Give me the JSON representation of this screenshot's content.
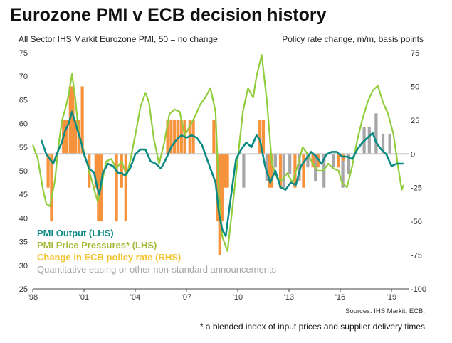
{
  "title": "Eurozone PMI v ECB decision history",
  "left_axis_label": "All Sector IHS Markit Eurozone PMI, 50 = no change",
  "right_axis_label": "Policy rate change, m/m, basis points",
  "source": "Sources: IHS Markit, ECB.",
  "footnote": "* a blended index of input prices and supplier delivery times",
  "colors": {
    "pmi_output": "#0b8a84",
    "pmi_prices": "#8fcd3b",
    "ecb_rate": "#f7923d",
    "qe": "#a6a6a6",
    "legend_rate_text": "#f4c430",
    "legend_prices_text": "#a6b93b",
    "zero_line": "#c8c8c8"
  },
  "chart_data": {
    "type": "line",
    "title": "Eurozone PMI v ECB decision history",
    "ylabel_left": "All Sector IHS Markit Eurozone PMI, 50 = no change",
    "ylabel_right": "Policy rate change, m/m, basis points",
    "ylim_left": [
      25,
      75
    ],
    "ylim_right": [
      -100,
      75
    ],
    "yticks_left": [
      25,
      30,
      35,
      40,
      45,
      50,
      55,
      60,
      65,
      70,
      75
    ],
    "yticks_right": [
      -100,
      -75,
      -50,
      -25,
      0,
      25,
      50,
      75
    ],
    "xlim": [
      1998.0,
      2020.0
    ],
    "xticks": [
      {
        "x": 1998,
        "label": "'98"
      },
      {
        "x": 2001,
        "label": "'01"
      },
      {
        "x": 2004,
        "label": "'04"
      },
      {
        "x": 2007,
        "label": "'07"
      },
      {
        "x": 2010,
        "label": "'10"
      },
      {
        "x": 2013,
        "label": "'13"
      },
      {
        "x": 2016,
        "label": "'16"
      },
      {
        "x": 2019,
        "label": "'19"
      }
    ],
    "legend": [
      {
        "label": "PMI  Output (LHS)",
        "key": "pmi_output"
      },
      {
        "label": "PMI Price Pressures* (LHS)",
        "key": "pmi_prices"
      },
      {
        "label": "Change in ECB policy rate (RHS)",
        "key": "ecb_rate"
      },
      {
        "label": "Quantitative easing or other non-standard announcements",
        "key": "qe"
      }
    ],
    "series": [
      {
        "name": "PMI  Output (LHS)",
        "axis": "left",
        "x": [
          1998.5,
          1998.8,
          1999.0,
          1999.2,
          1999.4,
          1999.7,
          1999.9,
          2000.1,
          2000.3,
          2000.5,
          2000.8,
          2001.0,
          2001.3,
          2001.6,
          2001.8,
          2001.9,
          2002.1,
          2002.4,
          2002.7,
          2003.0,
          2003.2,
          2003.4,
          2003.7,
          2004.0,
          2004.3,
          2004.6,
          2004.9,
          2005.2,
          2005.5,
          2005.8,
          2006.1,
          2006.4,
          2006.7,
          2007.0,
          2007.3,
          2007.6,
          2007.9,
          2008.2,
          2008.5,
          2008.7,
          2008.9,
          2009.1,
          2009.3,
          2009.6,
          2009.9,
          2010.2,
          2010.5,
          2010.8,
          2011.1,
          2011.3,
          2011.6,
          2011.9,
          2012.2,
          2012.5,
          2012.8,
          2013.1,
          2013.4,
          2013.7,
          2014.0,
          2014.3,
          2014.6,
          2014.9,
          2015.2,
          2015.5,
          2015.8,
          2016.1,
          2016.4,
          2016.7,
          2017.0,
          2017.3,
          2017.6,
          2017.9,
          2018.1,
          2018.4,
          2018.7,
          2019.0,
          2019.3,
          2019.6,
          2019.7
        ],
        "values": [
          56.5,
          53.5,
          52.5,
          51.5,
          53.5,
          56.0,
          58.5,
          60.0,
          62.5,
          60.0,
          56.5,
          53.5,
          50.5,
          49.5,
          46.0,
          45.0,
          49.5,
          51.5,
          51.0,
          49.5,
          49.5,
          49.0,
          50.5,
          53.5,
          54.5,
          54.5,
          52.0,
          51.5,
          50.5,
          52.5,
          55.0,
          56.5,
          57.5,
          57.0,
          57.5,
          57.0,
          55.5,
          52.5,
          49.5,
          47.5,
          41.0,
          37.5,
          36.2,
          44.5,
          52.5,
          54.5,
          56.0,
          55.0,
          57.5,
          56.5,
          51.0,
          47.5,
          50.0,
          46.5,
          46.0,
          47.5,
          47.0,
          51.0,
          52.5,
          54.0,
          53.0,
          51.5,
          53.5,
          54.0,
          54.0,
          53.0,
          53.0,
          52.5,
          54.5,
          56.0,
          57.0,
          58.0,
          56.0,
          54.5,
          53.5,
          51.0,
          51.5,
          51.5,
          51.5
        ]
      },
      {
        "name": "PMI Price Pressures* (LHS)",
        "axis": "left",
        "x": [
          1998.0,
          1998.3,
          1998.6,
          1998.8,
          1999.0,
          1999.3,
          1999.5,
          1999.7,
          1999.9,
          2000.1,
          2000.3,
          2000.5,
          2000.7,
          2001.0,
          2001.3,
          2001.6,
          2001.8,
          2002.0,
          2002.3,
          2002.6,
          2002.9,
          2003.2,
          2003.5,
          2003.7,
          2004.0,
          2004.3,
          2004.6,
          2004.8,
          2005.1,
          2005.4,
          2005.7,
          2006.0,
          2006.3,
          2006.6,
          2006.9,
          2007.2,
          2007.5,
          2007.8,
          2008.1,
          2008.4,
          2008.7,
          2008.9,
          2009.1,
          2009.4,
          2009.7,
          2010.0,
          2010.3,
          2010.6,
          2010.9,
          2011.1,
          2011.4,
          2011.7,
          2012.0,
          2012.3,
          2012.6,
          2012.9,
          2013.2,
          2013.5,
          2013.8,
          2014.1,
          2014.4,
          2014.7,
          2015.0,
          2015.3,
          2015.6,
          2015.9,
          2016.1,
          2016.4,
          2016.7,
          2017.0,
          2017.3,
          2017.6,
          2017.9,
          2018.2,
          2018.5,
          2018.8,
          2019.1,
          2019.4,
          2019.6,
          2019.7
        ],
        "values": [
          55.5,
          52.5,
          46.0,
          43.0,
          42.5,
          48.0,
          55.0,
          60.5,
          63.0,
          66.0,
          70.5,
          65.0,
          57.5,
          54.0,
          50.0,
          46.0,
          43.5,
          46.5,
          52.0,
          52.5,
          50.5,
          52.0,
          49.0,
          52.0,
          57.5,
          63.5,
          66.5,
          64.5,
          56.5,
          51.5,
          56.0,
          62.0,
          63.0,
          62.5,
          57.5,
          59.5,
          61.5,
          64.0,
          65.5,
          67.5,
          62.5,
          45.0,
          36.0,
          33.0,
          42.5,
          52.5,
          62.5,
          67.5,
          65.5,
          70.0,
          74.5,
          65.0,
          51.5,
          48.5,
          48.0,
          49.5,
          47.5,
          51.0,
          55.0,
          53.5,
          51.5,
          50.0,
          50.0,
          51.5,
          50.5,
          50.0,
          47.5,
          46.5,
          51.0,
          56.5,
          61.0,
          64.5,
          67.0,
          68.0,
          64.5,
          62.0,
          58.0,
          50.5,
          46.0,
          47.0
        ]
      },
      {
        "name": "Change in ECB policy rate (RHS)",
        "axis": "right",
        "type": "bar",
        "bars": [
          {
            "x": 1998.9,
            "value": -25
          },
          {
            "x": 1999.1,
            "value": -50
          },
          {
            "x": 1999.8,
            "value": 25
          },
          {
            "x": 2000.0,
            "value": 25
          },
          {
            "x": 2000.2,
            "value": 50
          },
          {
            "x": 2000.35,
            "value": 50
          },
          {
            "x": 2000.5,
            "value": 25
          },
          {
            "x": 2000.7,
            "value": 25
          },
          {
            "x": 2000.9,
            "value": 50
          },
          {
            "x": 2001.3,
            "value": -25
          },
          {
            "x": 2001.7,
            "value": -25
          },
          {
            "x": 2001.85,
            "value": -50
          },
          {
            "x": 2002.0,
            "value": -50
          },
          {
            "x": 2002.9,
            "value": -50
          },
          {
            "x": 2003.2,
            "value": -25
          },
          {
            "x": 2003.45,
            "value": -50
          },
          {
            "x": 2005.9,
            "value": 25
          },
          {
            "x": 2006.1,
            "value": 25
          },
          {
            "x": 2006.3,
            "value": 25
          },
          {
            "x": 2006.5,
            "value": 25
          },
          {
            "x": 2006.7,
            "value": 25
          },
          {
            "x": 2006.9,
            "value": 25
          },
          {
            "x": 2007.2,
            "value": 25
          },
          {
            "x": 2007.4,
            "value": 25
          },
          {
            "x": 2008.6,
            "value": 25
          },
          {
            "x": 2008.8,
            "value": -50
          },
          {
            "x": 2008.95,
            "value": -75
          },
          {
            "x": 2009.1,
            "value": -50
          },
          {
            "x": 2009.25,
            "value": -25
          },
          {
            "x": 2009.4,
            "value": -25
          },
          {
            "x": 2011.3,
            "value": 25
          },
          {
            "x": 2011.5,
            "value": 25
          },
          {
            "x": 2011.85,
            "value": -25
          },
          {
            "x": 2012.0,
            "value": -25
          },
          {
            "x": 2012.5,
            "value": -25
          },
          {
            "x": 2013.35,
            "value": -25
          },
          {
            "x": 2013.85,
            "value": -25
          },
          {
            "x": 2014.4,
            "value": -10
          },
          {
            "x": 2014.7,
            "value": -10
          },
          {
            "x": 2015.9,
            "value": -10
          },
          {
            "x": 2016.2,
            "value": -5
          }
        ]
      },
      {
        "name": "Quantitative easing or other non-standard announcements",
        "axis": "right",
        "type": "bar",
        "bars": [
          {
            "x": 2010.35,
            "value": -25
          },
          {
            "x": 2011.7,
            "value": -20
          },
          {
            "x": 2012.2,
            "value": -10
          },
          {
            "x": 2012.7,
            "value": -25
          },
          {
            "x": 2013.05,
            "value": -15
          },
          {
            "x": 2013.6,
            "value": -20
          },
          {
            "x": 2014.1,
            "value": -10
          },
          {
            "x": 2014.55,
            "value": -20
          },
          {
            "x": 2015.05,
            "value": -25
          },
          {
            "x": 2015.6,
            "value": -10
          },
          {
            "x": 2016.15,
            "value": -25
          },
          {
            "x": 2016.5,
            "value": -15
          },
          {
            "x": 2017.4,
            "value": 20
          },
          {
            "x": 2017.7,
            "value": 20
          },
          {
            "x": 2018.1,
            "value": 30
          },
          {
            "x": 2018.5,
            "value": 15
          },
          {
            "x": 2018.9,
            "value": 15
          }
        ]
      }
    ]
  }
}
